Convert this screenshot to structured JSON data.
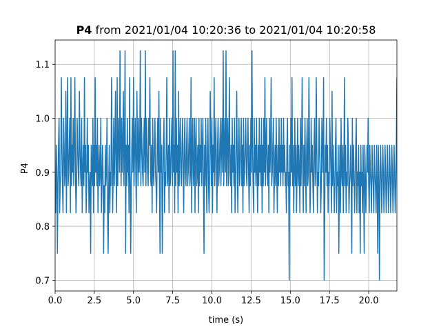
{
  "chart_data": {
    "type": "line",
    "title_bold": "P4",
    "title_rest": " from 2021/01/04 10:20:36 to 2021/01/04 10:20:58",
    "xlabel": "time (s)",
    "ylabel": "P4",
    "xlim": [
      0.0,
      21.8
    ],
    "ylim": [
      0.68,
      1.145
    ],
    "xticks": [
      0.0,
      2.5,
      5.0,
      7.5,
      10.0,
      12.5,
      15.0,
      17.5,
      20.0
    ],
    "xtick_labels": [
      "0.0",
      "2.5",
      "5.0",
      "7.5",
      "10.0",
      "12.5",
      "15.0",
      "17.5",
      "20.0"
    ],
    "yticks": [
      0.7,
      0.8,
      0.9,
      1.0,
      1.1
    ],
    "ytick_labels": [
      "0.7",
      "0.8",
      "0.9",
      "1.0",
      "1.1"
    ],
    "grid": true,
    "line_color": "#1f77b4",
    "sample_step": 0.05,
    "series": [
      {
        "y": [
          0.875,
          0.825,
          0.95,
          0.9,
          0.75,
          0.875,
          0.95,
          1.0,
          0.825,
          0.875,
          0.9,
          1.075,
          0.95,
          0.875,
          0.825,
          1.0,
          0.95,
          0.875,
          0.9,
          1.05,
          0.825,
          0.95,
          1.075,
          0.875,
          0.9,
          0.95,
          1.0,
          0.825,
          1.075,
          0.875,
          0.95,
          0.9,
          1.0,
          0.875,
          0.95,
          1.075,
          0.9,
          0.825,
          0.875,
          1.0,
          0.95,
          0.9,
          0.875,
          1.05,
          0.95,
          0.9,
          0.875,
          1.0,
          0.825,
          0.9,
          0.95,
          0.875,
          1.075,
          0.9,
          0.95,
          0.825,
          0.875,
          1.0,
          0.9,
          0.95,
          0.825,
          0.875,
          0.9,
          0.75,
          0.95,
          0.9,
          0.875,
          1.0,
          0.825,
          0.95,
          0.875,
          1.075,
          0.9,
          0.95,
          0.875,
          1.0,
          0.825,
          0.9,
          0.95,
          0.875,
          0.9,
          1.0,
          0.825,
          0.875,
          0.95,
          0.9,
          0.75,
          0.875,
          0.825,
          0.95,
          0.875,
          0.9,
          1.0,
          0.825,
          0.75,
          0.875,
          0.95,
          0.825,
          0.9,
          0.875,
          1.075,
          0.95,
          0.825,
          0.9,
          1.0,
          0.875,
          0.95,
          1.05,
          0.9,
          0.825,
          1.075,
          0.875,
          1.0,
          0.95,
          0.9,
          1.125,
          0.95,
          0.875,
          1.0,
          0.9,
          0.95,
          1.05,
          0.875,
          0.95,
          1.125,
          0.75,
          0.95,
          0.875,
          1.0,
          0.9,
          0.95,
          0.825,
          1.075,
          0.9,
          0.75,
          0.875,
          0.95,
          1.0,
          0.9,
          1.075,
          0.875,
          0.95,
          1.0,
          0.9,
          0.825,
          1.05,
          0.95,
          0.875,
          1.0,
          0.9,
          0.95,
          1.125,
          0.875,
          1.0,
          0.95,
          0.9,
          0.875,
          0.95,
          1.0,
          0.9,
          1.125,
          0.875,
          1.0,
          0.95,
          0.9,
          0.875,
          1.0,
          0.95,
          1.075,
          0.9,
          0.875,
          0.95,
          0.825,
          1.0,
          0.9,
          0.875,
          0.95,
          1.0,
          0.9,
          0.875,
          0.825,
          0.95,
          1.0,
          0.9,
          1.05,
          0.875,
          0.75,
          1.0,
          0.9,
          0.95,
          0.75,
          0.875,
          0.95,
          1.0,
          0.825,
          0.9,
          0.875,
          0.95,
          1.075,
          0.875,
          0.9,
          0.95,
          0.825,
          1.0,
          0.875,
          0.9,
          0.95,
          1.0,
          0.875,
          1.125,
          0.9,
          0.95,
          0.825,
          1.125,
          0.875,
          1.0,
          0.9,
          0.95,
          0.825,
          1.05,
          0.875,
          0.95,
          1.0,
          0.9,
          0.875,
          0.95,
          1.0,
          0.9,
          0.825,
          0.95,
          1.0,
          0.9,
          0.875,
          0.95,
          1.0,
          0.875,
          0.9,
          0.95,
          1.0,
          0.875,
          0.9,
          1.075,
          0.825,
          0.95,
          1.0,
          0.875,
          0.9,
          1.0,
          0.825,
          0.95,
          1.0,
          0.875,
          0.9,
          0.95,
          0.825,
          1.0,
          0.875,
          0.95,
          0.9,
          1.0,
          0.875,
          0.95,
          1.0,
          0.875,
          0.75,
          0.95,
          0.875,
          1.0,
          0.9,
          0.825,
          0.95,
          1.0,
          0.875,
          0.825,
          0.9,
          1.05,
          0.95,
          0.875,
          1.0,
          0.825,
          0.95,
          0.9,
          1.075,
          0.875,
          0.95,
          1.0,
          0.9,
          0.825,
          0.95,
          1.0,
          0.875,
          0.9,
          0.95,
          1.0,
          0.875,
          0.95,
          1.0,
          0.9,
          1.125,
          0.875,
          0.95,
          1.0,
          0.9,
          1.125,
          0.875,
          0.95,
          1.0,
          0.875,
          0.95,
          1.075,
          0.9,
          0.875,
          0.95,
          0.825,
          1.0,
          0.9,
          0.95,
          0.875,
          1.0,
          0.825,
          0.875,
          0.95,
          1.05,
          0.9,
          0.825,
          0.95,
          1.0,
          0.875,
          0.9,
          0.95,
          1.0,
          0.875,
          0.95,
          0.825,
          1.0,
          0.875,
          0.9,
          0.95,
          1.0,
          0.9,
          0.875,
          0.95,
          1.0,
          0.9,
          0.825,
          0.95,
          0.875,
          1.0,
          0.9,
          1.125,
          0.95,
          0.875,
          0.825,
          1.0,
          0.9,
          0.95,
          0.875,
          1.0,
          0.9,
          0.825,
          0.95,
          0.875,
          1.0,
          0.9,
          0.95,
          0.875,
          1.0,
          0.825,
          0.95,
          0.875,
          1.0,
          0.9,
          1.075,
          0.875,
          0.95,
          1.0,
          0.9,
          0.875,
          0.95,
          0.825,
          1.0,
          0.9,
          0.95,
          1.075,
          0.875,
          0.9,
          0.95,
          1.0,
          0.825,
          0.9,
          0.95,
          0.875,
          1.0,
          0.9,
          0.825,
          0.95,
          0.875,
          1.0,
          0.9,
          0.95,
          0.875,
          1.0,
          0.9,
          0.95,
          0.875,
          1.0,
          0.9,
          0.95,
          0.875,
          0.9,
          0.825,
          0.95,
          1.0,
          0.875,
          0.9,
          0.825,
          0.95,
          0.875,
          1.0,
          0.9,
          1.075,
          0.875,
          0.95,
          0.825,
          0.9,
          1.0,
          0.875,
          0.95,
          0.825,
          0.9,
          1.0,
          0.875,
          0.95,
          0.9,
          0.825,
          1.0,
          0.875,
          0.95,
          1.075,
          0.9,
          0.825,
          0.95,
          0.875,
          1.0,
          0.9,
          0.825,
          0.95,
          1.0,
          0.875,
          0.9,
          1.075,
          0.95,
          0.825,
          0.875,
          1.0,
          0.9,
          0.95,
          0.875,
          0.825,
          0.95,
          1.0,
          0.875,
          0.9,
          1.075,
          0.95,
          0.825,
          0.9,
          0.875,
          1.0,
          0.95,
          0.9,
          0.825,
          0.875,
          1.0,
          0.95,
          0.9,
          1.075,
          0.875,
          0.825,
          0.95,
          0.9,
          1.0,
          0.875,
          0.95,
          0.825,
          0.9,
          0.875,
          1.0,
          0.95,
          0.9,
          0.825,
          1.05,
          0.875,
          0.95,
          0.9,
          0.825,
          0.875,
          0.95,
          1.0,
          0.825,
          0.9,
          0.875,
          0.95,
          0.75,
          0.875,
          0.95,
          0.825,
          1.0,
          0.9,
          0.875,
          0.95,
          0.825,
          0.9,
          1.075,
          0.875,
          0.95,
          0.825,
          0.9,
          0.875,
          1.0,
          0.95,
          0.825,
          0.875,
          0.9,
          0.95,
          0.875,
          0.75,
          1.0,
          0.875,
          0.95,
          0.9,
          0.825,
          0.875,
          0.95,
          1.0,
          0.825,
          0.9,
          0.875,
          0.95,
          0.825,
          0.9,
          0.75,
          0.95,
          0.875,
          0.9,
          0.825,
          0.95,
          0.875,
          0.75,
          0.95,
          0.9,
          0.825,
          0.875,
          0.95,
          0.9,
          1.0,
          0.875,
          0.825,
          0.95,
          0.9,
          0.875,
          0.825,
          0.95,
          0.9,
          0.875,
          0.825,
          0.95,
          0.9,
          0.875,
          0.825,
          0.95,
          0.875,
          0.75,
          0.95,
          0.9,
          0.825,
          0.875,
          0.95,
          0.9,
          0.825,
          0.875,
          0.95,
          0.9,
          0.825,
          0.875,
          0.95,
          0.9,
          0.825,
          0.875,
          0.95,
          0.9,
          0.825,
          0.875,
          0.95,
          0.9,
          0.825,
          0.875,
          0.95,
          0.9,
          0.825,
          0.875,
          0.95,
          0.9,
          0.825,
          0.875,
          0.95,
          1.075
        ]
      }
    ],
    "spikes": [
      {
        "x": 14.93,
        "y": 0.7
      },
      {
        "x": 17.15,
        "y": 0.7
      },
      {
        "x": 20.7,
        "y": 0.7
      }
    ]
  }
}
